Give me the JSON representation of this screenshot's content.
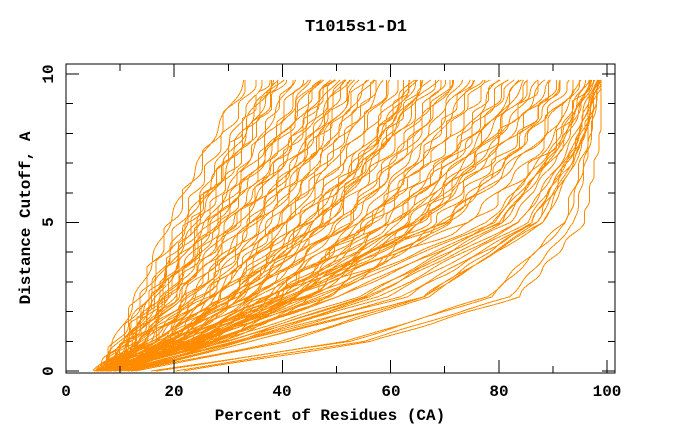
{
  "chart_data": {
    "type": "line",
    "title": "T1015s1-D1",
    "xlabel": "Percent of Residues (CA)",
    "ylabel": "Distance Cutoff, A",
    "xlim": [
      0,
      101.6
    ],
    "ylim": [
      0,
      10.3
    ],
    "x_major_ticks": [
      0,
      20,
      40,
      60,
      80,
      100
    ],
    "x_tick_labels": [
      "0",
      "20",
      "40",
      "60",
      "80",
      "100"
    ],
    "x_minor_ticks": [
      10,
      30,
      50,
      70,
      90
    ],
    "y_major_ticks": [
      0,
      5,
      10
    ],
    "y_tick_labels": [
      "0",
      "5",
      "10"
    ],
    "y_minor_ticks": [
      1,
      2,
      3,
      4,
      6,
      7,
      8,
      9
    ],
    "grid": false,
    "legend": false,
    "colors": {
      "line": "#ff8c00",
      "axis": "#000000",
      "background": "#ffffff",
      "text": "#000000"
    },
    "curve_y_levels": [
      0,
      1,
      2.5,
      5,
      7.5,
      9.8
    ],
    "curves": [
      [
        6,
        9,
        13,
        19,
        26,
        33
      ],
      [
        6,
        10,
        14,
        21,
        28,
        35
      ],
      [
        7,
        11,
        16,
        23,
        30,
        37
      ],
      [
        6,
        10,
        15,
        22,
        31,
        38
      ],
      [
        7,
        12,
        17,
        25,
        33,
        40
      ],
      [
        6,
        11,
        17,
        26,
        35,
        42
      ],
      [
        7,
        13,
        19,
        28,
        37,
        44
      ],
      [
        6,
        12,
        18,
        27,
        38,
        46
      ],
      [
        7,
        14,
        21,
        30,
        40,
        47
      ],
      [
        6,
        13,
        20,
        31,
        41,
        49
      ],
      [
        6,
        11,
        16,
        24,
        32,
        39
      ],
      [
        6,
        12,
        19,
        29,
        39,
        47
      ],
      [
        6,
        14,
        22,
        33,
        43,
        50
      ],
      [
        7,
        15,
        24,
        35,
        45,
        52
      ],
      [
        6,
        16,
        25,
        37,
        46,
        54
      ],
      [
        7,
        17,
        27,
        39,
        48,
        56
      ],
      [
        6,
        15,
        26,
        40,
        50,
        58
      ],
      [
        7,
        18,
        29,
        42,
        52,
        60
      ],
      [
        6,
        17,
        28,
        43,
        54,
        62
      ],
      [
        7,
        19,
        31,
        45,
        55,
        63
      ],
      [
        6,
        18,
        30,
        46,
        57,
        65
      ],
      [
        7,
        20,
        33,
        48,
        58,
        66
      ],
      [
        6,
        19,
        32,
        49,
        60,
        68
      ],
      [
        7,
        21,
        35,
        51,
        62,
        70
      ],
      [
        6,
        20,
        34,
        52,
        63,
        71
      ],
      [
        7,
        22,
        37,
        54,
        65,
        73
      ],
      [
        6,
        21,
        36,
        55,
        66,
        74
      ],
      [
        7,
        23,
        38,
        56,
        68,
        76
      ],
      [
        6,
        14,
        23,
        34,
        44,
        51
      ],
      [
        7,
        16,
        26,
        38,
        47,
        55
      ],
      [
        6,
        18,
        31,
        47,
        58,
        67
      ],
      [
        7,
        19,
        30,
        44,
        56,
        64
      ],
      [
        6,
        22,
        37,
        57,
        70,
        78
      ],
      [
        7,
        24,
        40,
        59,
        72,
        80
      ],
      [
        6,
        23,
        39,
        60,
        73,
        82
      ],
      [
        7,
        25,
        42,
        62,
        75,
        84
      ],
      [
        6,
        24,
        41,
        63,
        77,
        86
      ],
      [
        7,
        26,
        44,
        65,
        78,
        88
      ],
      [
        6,
        25,
        43,
        66,
        80,
        90
      ],
      [
        7,
        27,
        46,
        68,
        82,
        92
      ],
      [
        6,
        25,
        42,
        64,
        76,
        85
      ],
      [
        7,
        28,
        48,
        70,
        83,
        91
      ],
      [
        8,
        20,
        38,
        70,
        86,
        94
      ],
      [
        9,
        22,
        42,
        74,
        88,
        95
      ],
      [
        8,
        24,
        46,
        78,
        90,
        96
      ],
      [
        10,
        26,
        50,
        80,
        91,
        97
      ],
      [
        9,
        28,
        54,
        82,
        92,
        97
      ],
      [
        10,
        30,
        58,
        84,
        93,
        98
      ],
      [
        11,
        32,
        62,
        86,
        94,
        98
      ],
      [
        12,
        34,
        66,
        88,
        95,
        98
      ],
      [
        8,
        30,
        55,
        79,
        89,
        95
      ],
      [
        12,
        40,
        66,
        86,
        94,
        97.5
      ],
      [
        16,
        52,
        78,
        92,
        96,
        98
      ],
      [
        20,
        55,
        82,
        94,
        96.5,
        98.5
      ]
    ]
  }
}
